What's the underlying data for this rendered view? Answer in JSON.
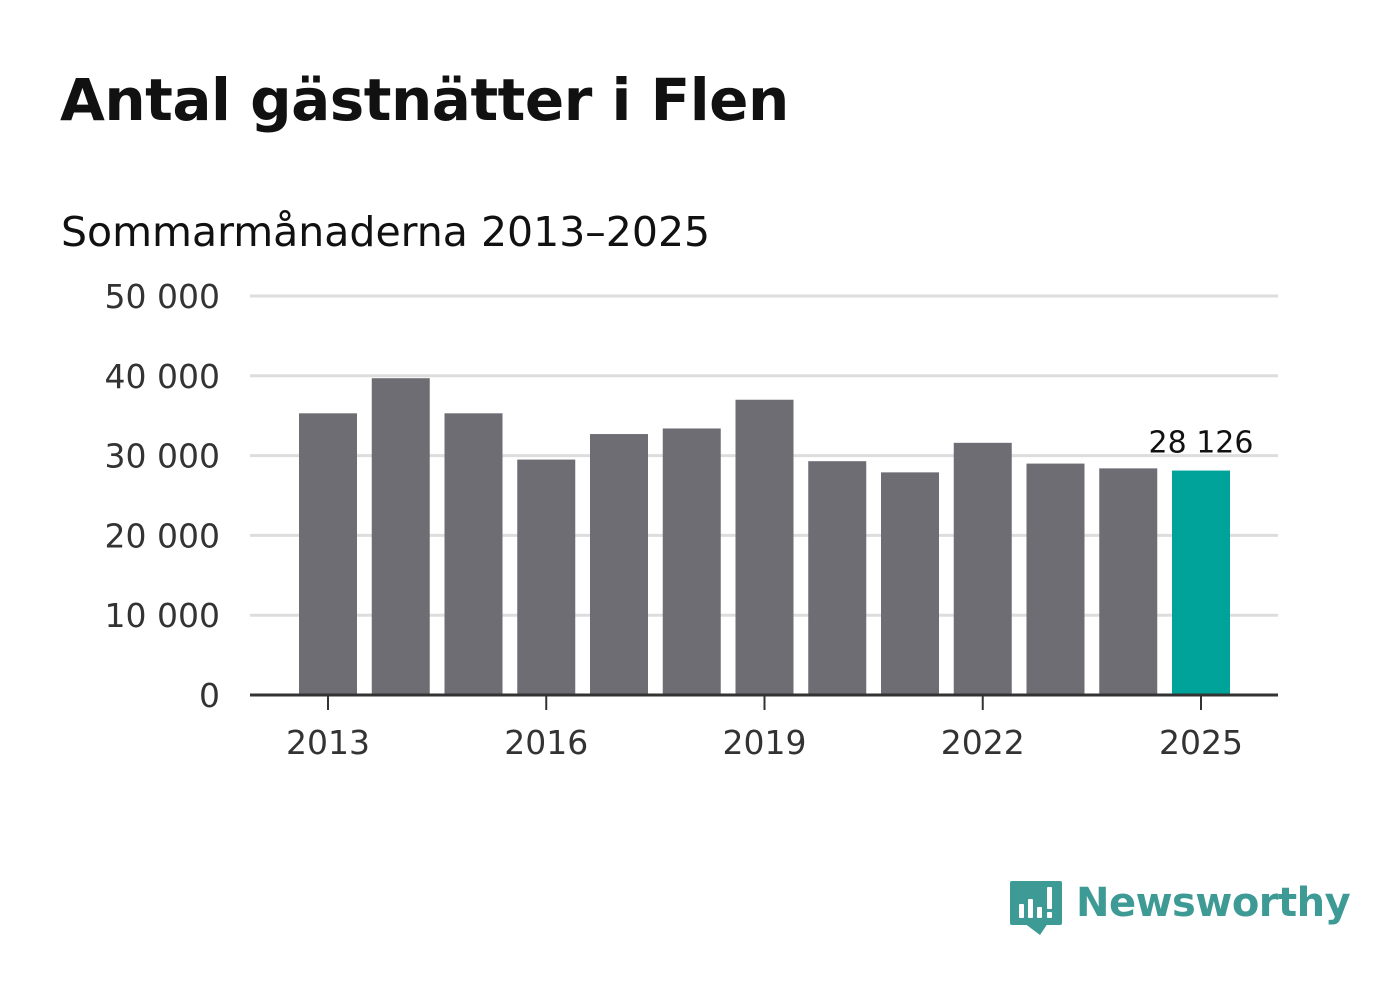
{
  "title": "Antal gästnätter i Flen",
  "subtitle": "Sommarmånaderna 2013–2025",
  "brand": {
    "name": "Newsworthy",
    "icon": "newsworthy-logo-icon",
    "color": "#3e9a95"
  },
  "colors": {
    "bar": "#6e6d74",
    "highlight": "#00a39a",
    "grid": "#dddddd",
    "axis": "#333333"
  },
  "chart_data": {
    "type": "bar",
    "title": "Antal gästnätter i Flen",
    "subtitle": "Sommarmånaderna 2013–2025",
    "categories": [
      2013,
      2014,
      2015,
      2016,
      2017,
      2018,
      2019,
      2020,
      2021,
      2022,
      2023,
      2024,
      2025
    ],
    "values": [
      35300,
      39700,
      35300,
      29500,
      32700,
      33400,
      37000,
      29300,
      27900,
      31600,
      29000,
      28400,
      28126
    ],
    "highlight_index": 12,
    "highlight_label": "28 126",
    "x_tick_labels": [
      "2013",
      "2016",
      "2019",
      "2022",
      "2025"
    ],
    "x_tick_values": [
      2013,
      2016,
      2019,
      2022,
      2025
    ],
    "y_tick_labels": [
      "0",
      "10 000",
      "20 000",
      "30 000",
      "40 000",
      "50 000"
    ],
    "y_tick_values": [
      0,
      10000,
      20000,
      30000,
      40000,
      50000
    ],
    "ylim": [
      0,
      50000
    ],
    "grid": true,
    "xlabel": "",
    "ylabel": ""
  }
}
